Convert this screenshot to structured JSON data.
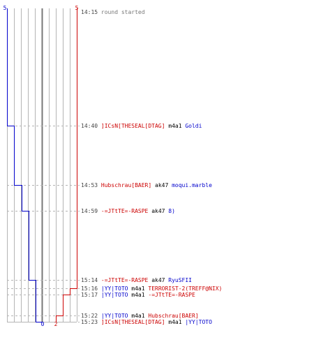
{
  "teams": {
    "blue": {
      "color": "#0000cc",
      "start_count": "5",
      "end_count": "0"
    },
    "red": {
      "color": "#cc0000",
      "start_count": "5",
      "end_count": "2"
    }
  },
  "colors": {
    "grid": "#b4b4b4",
    "center_line": "#777777",
    "dash": "#b4b4b4",
    "time": "#444444",
    "info": "#777777",
    "weapon": "#000000"
  },
  "events": [
    {
      "time": "14:15",
      "info": "round started"
    },
    {
      "time": "14:40",
      "killer": "]ICsN[THESEAL[DTAG]",
      "killer_team": "red",
      "weapon": "m4a1",
      "victim": "Goldi",
      "victim_team": "blue",
      "blue_alive": 4,
      "red_alive": 5
    },
    {
      "time": "14:53",
      "killer": "Hubschrau[BAER]",
      "killer_team": "red",
      "weapon": "ak47",
      "victim": "moqui.marble",
      "victim_team": "blue",
      "blue_alive": 3,
      "red_alive": 5
    },
    {
      "time": "14:59",
      "killer": "-=JTtTE=-RASPE",
      "killer_team": "red",
      "weapon": "ak47",
      "victim": "8)",
      "victim_team": "blue",
      "blue_alive": 2,
      "red_alive": 5
    },
    {
      "time": "15:14",
      "killer": "-=JTtTE=-RASPE",
      "killer_team": "red",
      "weapon": "ak47",
      "victim": "RyuSFII",
      "victim_team": "blue",
      "blue_alive": 1,
      "red_alive": 5
    },
    {
      "time": "15:16",
      "killer": "|YY|TOTO",
      "killer_team": "blue",
      "weapon": "m4a1",
      "victim": "TERRORIST-2(TREFF@NIX)",
      "victim_team": "red",
      "blue_alive": 1,
      "red_alive": 4
    },
    {
      "time": "15:17",
      "killer": "|YY|TOTO",
      "killer_team": "blue",
      "weapon": "m4a1",
      "victim": "-=JTtTE=-RASPE",
      "victim_team": "red",
      "blue_alive": 1,
      "red_alive": 3
    },
    {
      "time": "15:22",
      "killer": "|YY|TOTO",
      "killer_team": "blue",
      "weapon": "m4a1",
      "victim": "Hubschrau[BAER]",
      "victim_team": "red",
      "blue_alive": 1,
      "red_alive": 2
    },
    {
      "time": "15:23",
      "killer": "]ICsN[THESEAL[DTAG]",
      "killer_team": "red",
      "weapon": "m4a1",
      "victim": "|YY|TOTO",
      "victim_team": "blue",
      "blue_alive": 0,
      "red_alive": 2
    }
  ]
}
